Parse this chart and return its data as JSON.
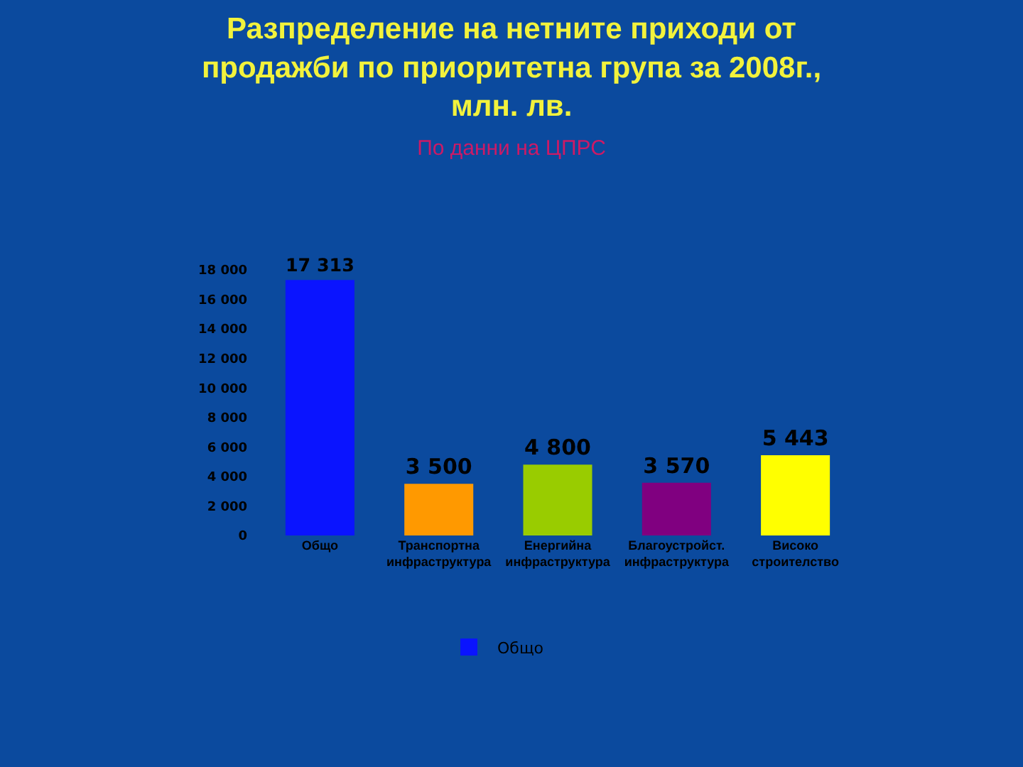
{
  "chart_data": {
    "type": "bar",
    "title": "Разпределение на нетните приходи от продажби по приоритетна група за 2008г.,  млн. лв.",
    "subtitle": "По данни на ЦПРС",
    "categories": [
      "Общо",
      "Транспортна инфраструктура",
      "Енергийна инфраструктура",
      "Благоустройст. инфраструктура",
      "Високо строителство"
    ],
    "series": [
      {
        "name": "Общо",
        "colors": [
          "#0a14ff",
          "#ff9900",
          "#99cc00",
          "#800080",
          "#ffff00"
        ],
        "values": [
          17313,
          3500,
          4800,
          3570,
          5443
        ],
        "value_labels": [
          "17 313",
          "3 500",
          "4 800",
          "3 570",
          "5 443"
        ]
      }
    ],
    "ylim": [
      0,
      18000
    ],
    "yticks": [
      0,
      {
        "value": 2000,
        "label": "2 000"
      },
      {
        "value": 4000,
        "label": "4 000"
      },
      {
        "value": 6000,
        "label": "6 000"
      },
      {
        "value": 8000,
        "label": "8 000"
      },
      {
        "value": 10000,
        "label": "10 000"
      },
      {
        "value": 12000,
        "label": "12 000"
      },
      {
        "value": 14000,
        "label": "14 000"
      },
      {
        "value": 16000,
        "label": "16 000"
      },
      {
        "value": 18000,
        "label": "18 000"
      }
    ],
    "legend": "bottom"
  }
}
